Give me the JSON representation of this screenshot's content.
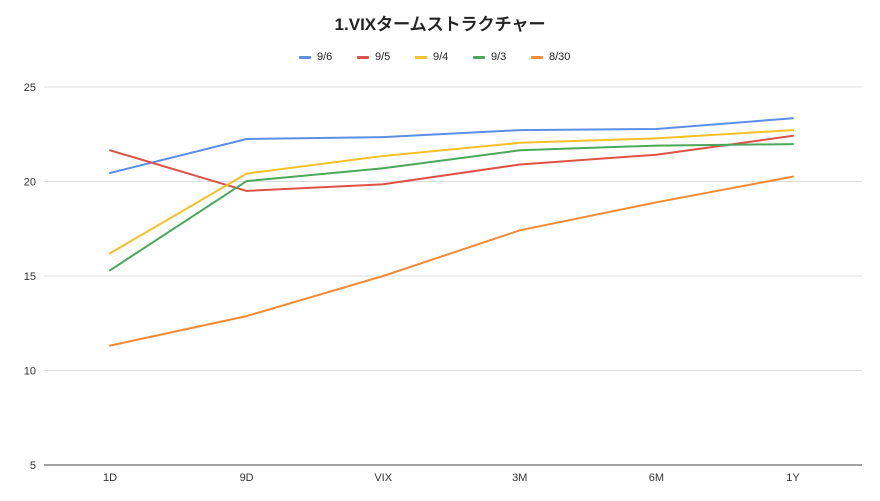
{
  "chart_data": {
    "type": "line",
    "title": "1.VIXタームストラクチャー",
    "xlabel": "",
    "ylabel": "",
    "categories": [
      "1D",
      "9D",
      "VIX",
      "3M",
      "6M",
      "1Y"
    ],
    "ylim": [
      5,
      25
    ],
    "yticks": [
      "5",
      "10",
      "15",
      "20",
      "25"
    ],
    "grid": true,
    "legend_position": "top",
    "series": [
      {
        "name": "9/6",
        "color": "#5b8fe6",
        "values": [
          20.45,
          22.25,
          22.35,
          22.72,
          22.78,
          23.35
        ]
      },
      {
        "name": "9/5",
        "color": "#de5246",
        "values": [
          21.65,
          19.5,
          19.85,
          20.9,
          21.42,
          22.42
        ]
      },
      {
        "name": "9/4",
        "color": "#f5c026",
        "values": [
          16.2,
          20.42,
          21.35,
          22.05,
          22.28,
          22.72
        ]
      },
      {
        "name": "9/3",
        "color": "#4aa85a",
        "values": [
          15.3,
          20.02,
          20.7,
          21.65,
          21.9,
          21.98
        ]
      },
      {
        "name": "8/30",
        "color": "#f58a33",
        "values": [
          11.32,
          12.88,
          15.0,
          17.42,
          18.9,
          20.26
        ]
      }
    ]
  }
}
